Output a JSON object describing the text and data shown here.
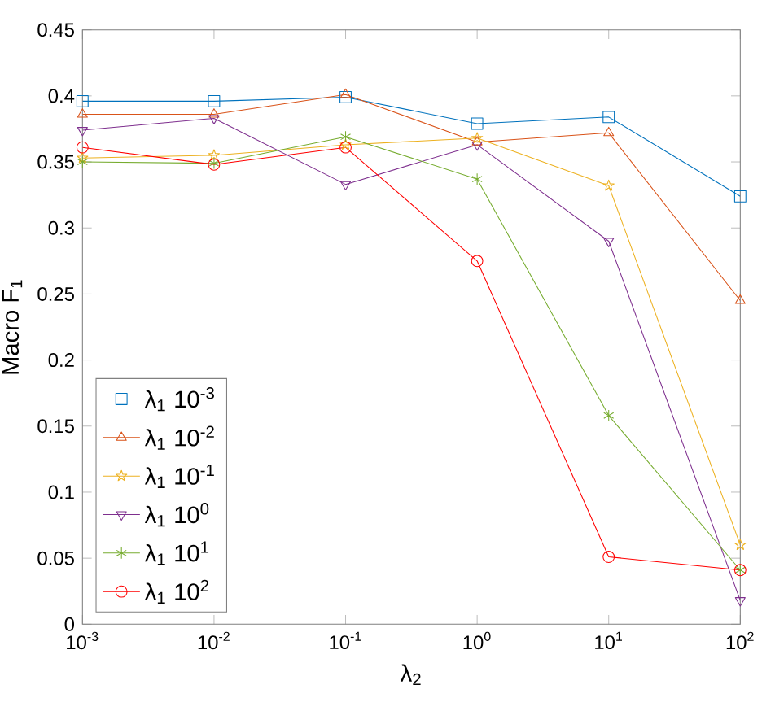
{
  "chart_data": {
    "type": "line",
    "xlabel": "λ$_{2}$",
    "ylabel": "Macro F$_{1}$",
    "x": [
      0.001,
      0.01,
      0.1,
      1,
      10,
      100
    ],
    "log": "x",
    "xlim": [
      0.001,
      100
    ],
    "xticks": [
      {
        "value": 0.001,
        "label": "10$^{-3}$"
      },
      {
        "value": 0.01,
        "label": "10$^{-2}$"
      },
      {
        "value": 0.1,
        "label": "10$^{-1}$"
      },
      {
        "value": 1,
        "label": "10$^{0}$"
      },
      {
        "value": 10,
        "label": "10$^{1}$"
      },
      {
        "value": 100,
        "label": "10$^{2}$"
      }
    ],
    "ylim": [
      0,
      0.45
    ],
    "yticks": [
      0,
      0.05,
      0.1,
      0.15,
      0.2,
      0.25,
      0.3,
      0.35,
      0.4,
      0.45
    ],
    "legend": "bottom left",
    "grid": false,
    "line_style": "solid",
    "series": [
      {
        "name": "λ$_{1}$ 10$^{-3}$",
        "color": "#0072bd",
        "marker": "square",
        "values": [
          0.396,
          0.396,
          0.399,
          0.379,
          0.384,
          0.324
        ]
      },
      {
        "name": "λ$_{1}$ 10$^{-2}$",
        "color": "#d95319",
        "marker": "triangle",
        "values": [
          0.386,
          0.386,
          0.401,
          0.365,
          0.372,
          0.245
        ]
      },
      {
        "name": "λ$_{1}$ 10$^{-1}$",
        "color": "#edb120",
        "marker": "star",
        "values": [
          0.353,
          0.355,
          0.363,
          0.368,
          0.332,
          0.06
        ]
      },
      {
        "name": "λ$_{1}$ 10$^{0}$",
        "color": "#7e2f8e",
        "marker": "triangle_down",
        "values": [
          0.374,
          0.383,
          0.333,
          0.363,
          0.29,
          0.018
        ]
      },
      {
        "name": "λ$_{1}$ 10$^{1}$",
        "color": "#77ac30",
        "marker": "cross",
        "values": [
          0.35,
          0.349,
          0.369,
          0.337,
          0.158,
          0.041
        ]
      },
      {
        "name": "λ$_{1}$ 10$^{2}$",
        "color": "#ff0000",
        "marker": "circle",
        "values": [
          0.361,
          0.348,
          0.361,
          0.275,
          0.051,
          0.041
        ]
      }
    ]
  }
}
